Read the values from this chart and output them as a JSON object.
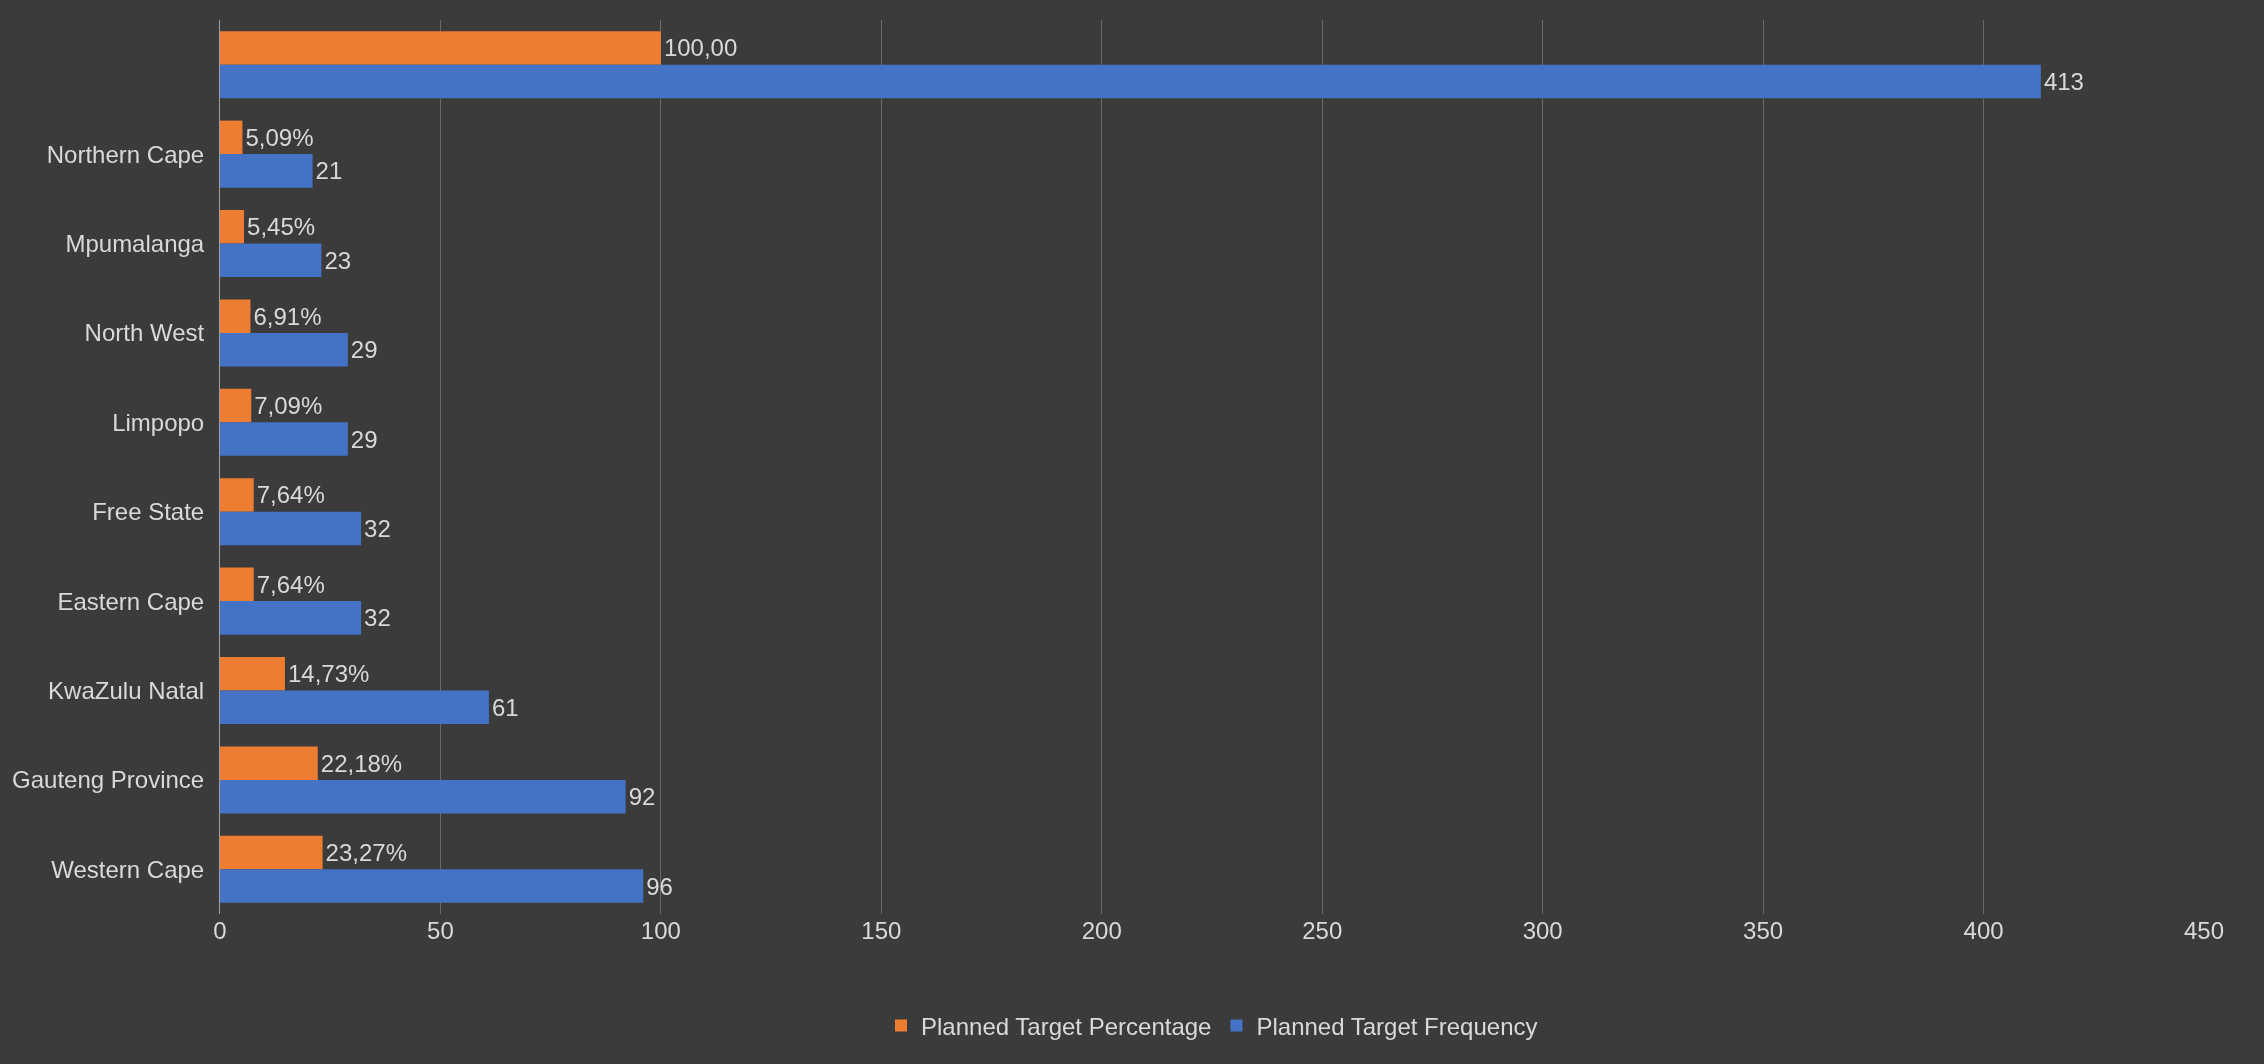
{
  "chart_data": {
    "type": "bar",
    "orientation": "horizontal",
    "categories": [
      null,
      "Northern Cape",
      "Mpumalanga",
      "North West",
      "Limpopo",
      "Free State",
      "Eastern Cape",
      "KwaZulu Natal",
      "Gauteng Province",
      "Western Cape"
    ],
    "series": [
      {
        "name": "Planned Target Percentage",
        "color": "#ed7d31",
        "values": [
          100,
          5.09,
          5.45,
          6.91,
          7.09,
          7.64,
          7.64,
          14.73,
          22.18,
          23.27
        ],
        "value_labels": [
          "100,00",
          "5,09%",
          "5,45%",
          "6,91%",
          "7,09%",
          "7,64%",
          "7,64%",
          "14,73%",
          "22,18%",
          "23,27%"
        ]
      },
      {
        "name": "Planned Target Frequency",
        "color": "#4472c4",
        "values": [
          413,
          21,
          23,
          29,
          29,
          32,
          32,
          61,
          92,
          96
        ],
        "value_labels": [
          "413",
          "21",
          "23",
          "29",
          "29",
          "32",
          "32",
          "61",
          "92",
          "96"
        ]
      }
    ],
    "xlim": [
      0,
      450
    ],
    "xticks": [
      0,
      50,
      100,
      150,
      200,
      250,
      300,
      350,
      400,
      450
    ],
    "grid": "x",
    "legend": "bottom"
  }
}
